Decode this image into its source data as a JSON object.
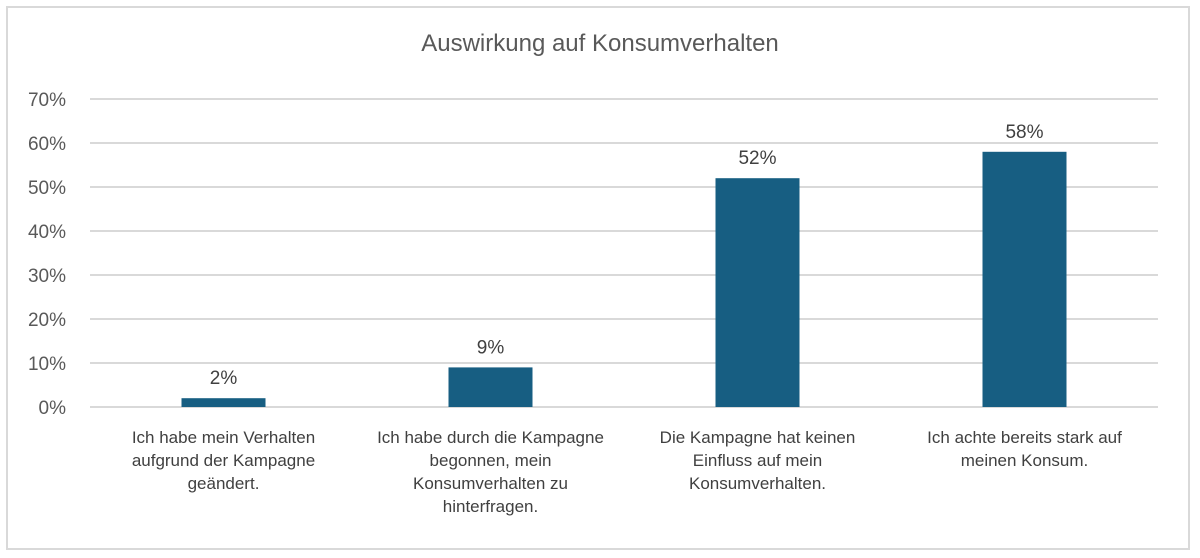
{
  "chart_data": {
    "type": "bar",
    "title": "Auswirkung auf Konsumverhalten",
    "categories": [
      "Ich habe mein Verhalten aufgrund der Kampagne geändert.",
      "Ich habe durch die Kampagne begonnen, mein Konsumverhalten zu hinterfragen.",
      "Die Kampagne hat keinen Einfluss auf mein Konsumverhalten.",
      "Ich achte bereits stark auf meinen Konsum."
    ],
    "values": [
      2,
      9,
      52,
      58
    ],
    "data_labels": [
      "2%",
      "9%",
      "52%",
      "58%"
    ],
    "ylim": [
      0,
      70
    ],
    "yticks": [
      "0%",
      "10%",
      "20%",
      "30%",
      "40%",
      "50%",
      "60%",
      "70%"
    ],
    "grid": true,
    "bar_color": "#175e82",
    "grid_color": "#d9d9d9"
  }
}
